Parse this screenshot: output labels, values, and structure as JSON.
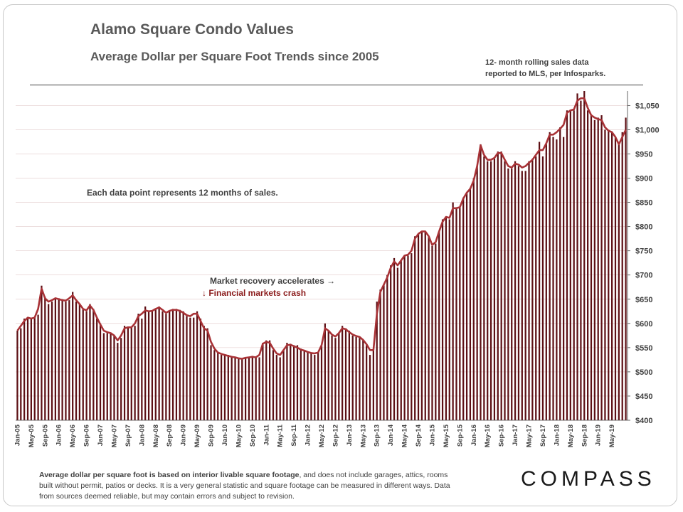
{
  "header": {
    "title": "Alamo Square Condo Values",
    "subtitle": "Average Dollar  per Square  Foot Trends since 2005",
    "note_line1": "12- month rolling sales data",
    "note_line2": "reported to MLS, per Infosparks."
  },
  "annotations": {
    "data_point": "Each data point represents 12 months of sales.",
    "recovery": "Market recovery accelerates →",
    "crash": "↓ Financial markets crash"
  },
  "footnote": {
    "bold": "Average dollar per square foot is based on interior livable square footage",
    "rest": ", and does not include garages, attics, rooms built without permit, patios or decks. It is a very general statistic and square footage can be measured in different ways. Data from sources deemed reliable, but may contain errors and subject to revision."
  },
  "logo": "COMPASS",
  "chart_data": {
    "type": "bar",
    "title": "Alamo Square Condo Values",
    "ylim": [
      400,
      1080
    ],
    "yticks": [
      400,
      450,
      500,
      550,
      600,
      650,
      700,
      750,
      800,
      850,
      900,
      950,
      1000,
      1050
    ],
    "ytick_labels": [
      "$400",
      "$450",
      "$500",
      "$550",
      "$600",
      "$650",
      "$700",
      "$750",
      "$800",
      "$850",
      "$900",
      "$950",
      "$1,000",
      "$1,050"
    ],
    "xtick_labels": [
      "Jan-05",
      "May-05",
      "Sep-05",
      "Jan-06",
      "May-06",
      "Sep-06",
      "Jan-07",
      "May-07",
      "Sep-07",
      "Jan-08",
      "May-08",
      "Sep-08",
      "Jan-09",
      "May-09",
      "Sep-09",
      "Jan-10",
      "May-10",
      "Sep-10",
      "Jan-11",
      "May-11",
      "Sep-11",
      "Jan-12",
      "May-12",
      "Sep-12",
      "Jan-13",
      "May-13",
      "Sep-13",
      "Jan-14",
      "May-14",
      "Sep-14",
      "Jan-15",
      "May-15",
      "Sep-15",
      "Jan-16",
      "May-16",
      "Sep-16",
      "Jan-17",
      "May-17",
      "Sep-17",
      "Jan-18",
      "May-18",
      "Sep-18",
      "Jan-19",
      "May-19"
    ],
    "bar_color": "#5c0f14",
    "line_color": "#a83236",
    "series": [
      {
        "type": "bar",
        "values": [
          585,
          590,
          610,
          612,
          610,
          612,
          618,
          678,
          655,
          640,
          645,
          650,
          652,
          650,
          645,
          648,
          665,
          645,
          640,
          630,
          625,
          640,
          630,
          610,
          600,
          580,
          580,
          580,
          575,
          560,
          570,
          595,
          592,
          592,
          595,
          620,
          610,
          635,
          625,
          625,
          630,
          635,
          625,
          620,
          625,
          630,
          630,
          628,
          625,
          615,
          612,
          612,
          625,
          610,
          595,
          590,
          555,
          545,
          540,
          535,
          535,
          535,
          530,
          530,
          528,
          527,
          528,
          530,
          533,
          530,
          530,
          560,
          565,
          565,
          545,
          535,
          530,
          545,
          560,
          558,
          555,
          555,
          548,
          545,
          542,
          540,
          535,
          540,
          553,
          600,
          585,
          575,
          570,
          580,
          595,
          590,
          585,
          575,
          572,
          570,
          565,
          555,
          535,
          545,
          645,
          670,
          680,
          700,
          720,
          735,
          715,
          730,
          740,
          740,
          745,
          780,
          785,
          790,
          790,
          780,
          760,
          765,
          790,
          815,
          820,
          815,
          850,
          840,
          840,
          860,
          870,
          880,
          900,
          925,
          970,
          945,
          935,
          935,
          940,
          955,
          955,
          935,
          920,
          920,
          935,
          925,
          915,
          915,
          935,
          940,
          945,
          975,
          945,
          970,
          995,
          985,
          980,
          1005,
          985,
          1040,
          1040,
          1040,
          1075,
          1060,
          1080,
          1040,
          1030,
          1020,
          1025,
          1030,
          1000,
          1000,
          995,
          985,
          975,
          995,
          1025
        ]
      },
      {
        "type": "line",
        "values": [
          585,
          595,
          605,
          612,
          610,
          612,
          630,
          672,
          652,
          645,
          648,
          652,
          650,
          648,
          647,
          652,
          658,
          648,
          640,
          630,
          627,
          637,
          628,
          612,
          598,
          585,
          582,
          580,
          575,
          565,
          575,
          590,
          592,
          592,
          600,
          615,
          620,
          627,
          625,
          626,
          630,
          633,
          628,
          622,
          626,
          628,
          628,
          626,
          622,
          617,
          615,
          620,
          620,
          605,
          590,
          585,
          562,
          548,
          540,
          537,
          535,
          533,
          531,
          530,
          528,
          527,
          529,
          530,
          531,
          530,
          535,
          558,
          562,
          560,
          548,
          538,
          535,
          545,
          555,
          556,
          553,
          550,
          546,
          544,
          541,
          539,
          538,
          540,
          555,
          590,
          585,
          577,
          573,
          580,
          590,
          588,
          582,
          577,
          574,
          572,
          566,
          557,
          545,
          545,
          620,
          665,
          680,
          695,
          715,
          728,
          720,
          730,
          740,
          742,
          750,
          775,
          785,
          790,
          790,
          780,
          762,
          768,
          790,
          810,
          820,
          818,
          838,
          838,
          840,
          858,
          870,
          878,
          895,
          925,
          968,
          948,
          938,
          938,
          942,
          952,
          952,
          938,
          925,
          922,
          930,
          928,
          922,
          925,
          932,
          938,
          948,
          958,
          958,
          972,
          990,
          990,
          995,
          1002,
          1010,
          1035,
          1040,
          1042,
          1060,
          1065,
          1065,
          1045,
          1030,
          1025,
          1022,
          1020,
          1005,
          998,
          995,
          985,
          970,
          985,
          1000
        ]
      }
    ]
  }
}
